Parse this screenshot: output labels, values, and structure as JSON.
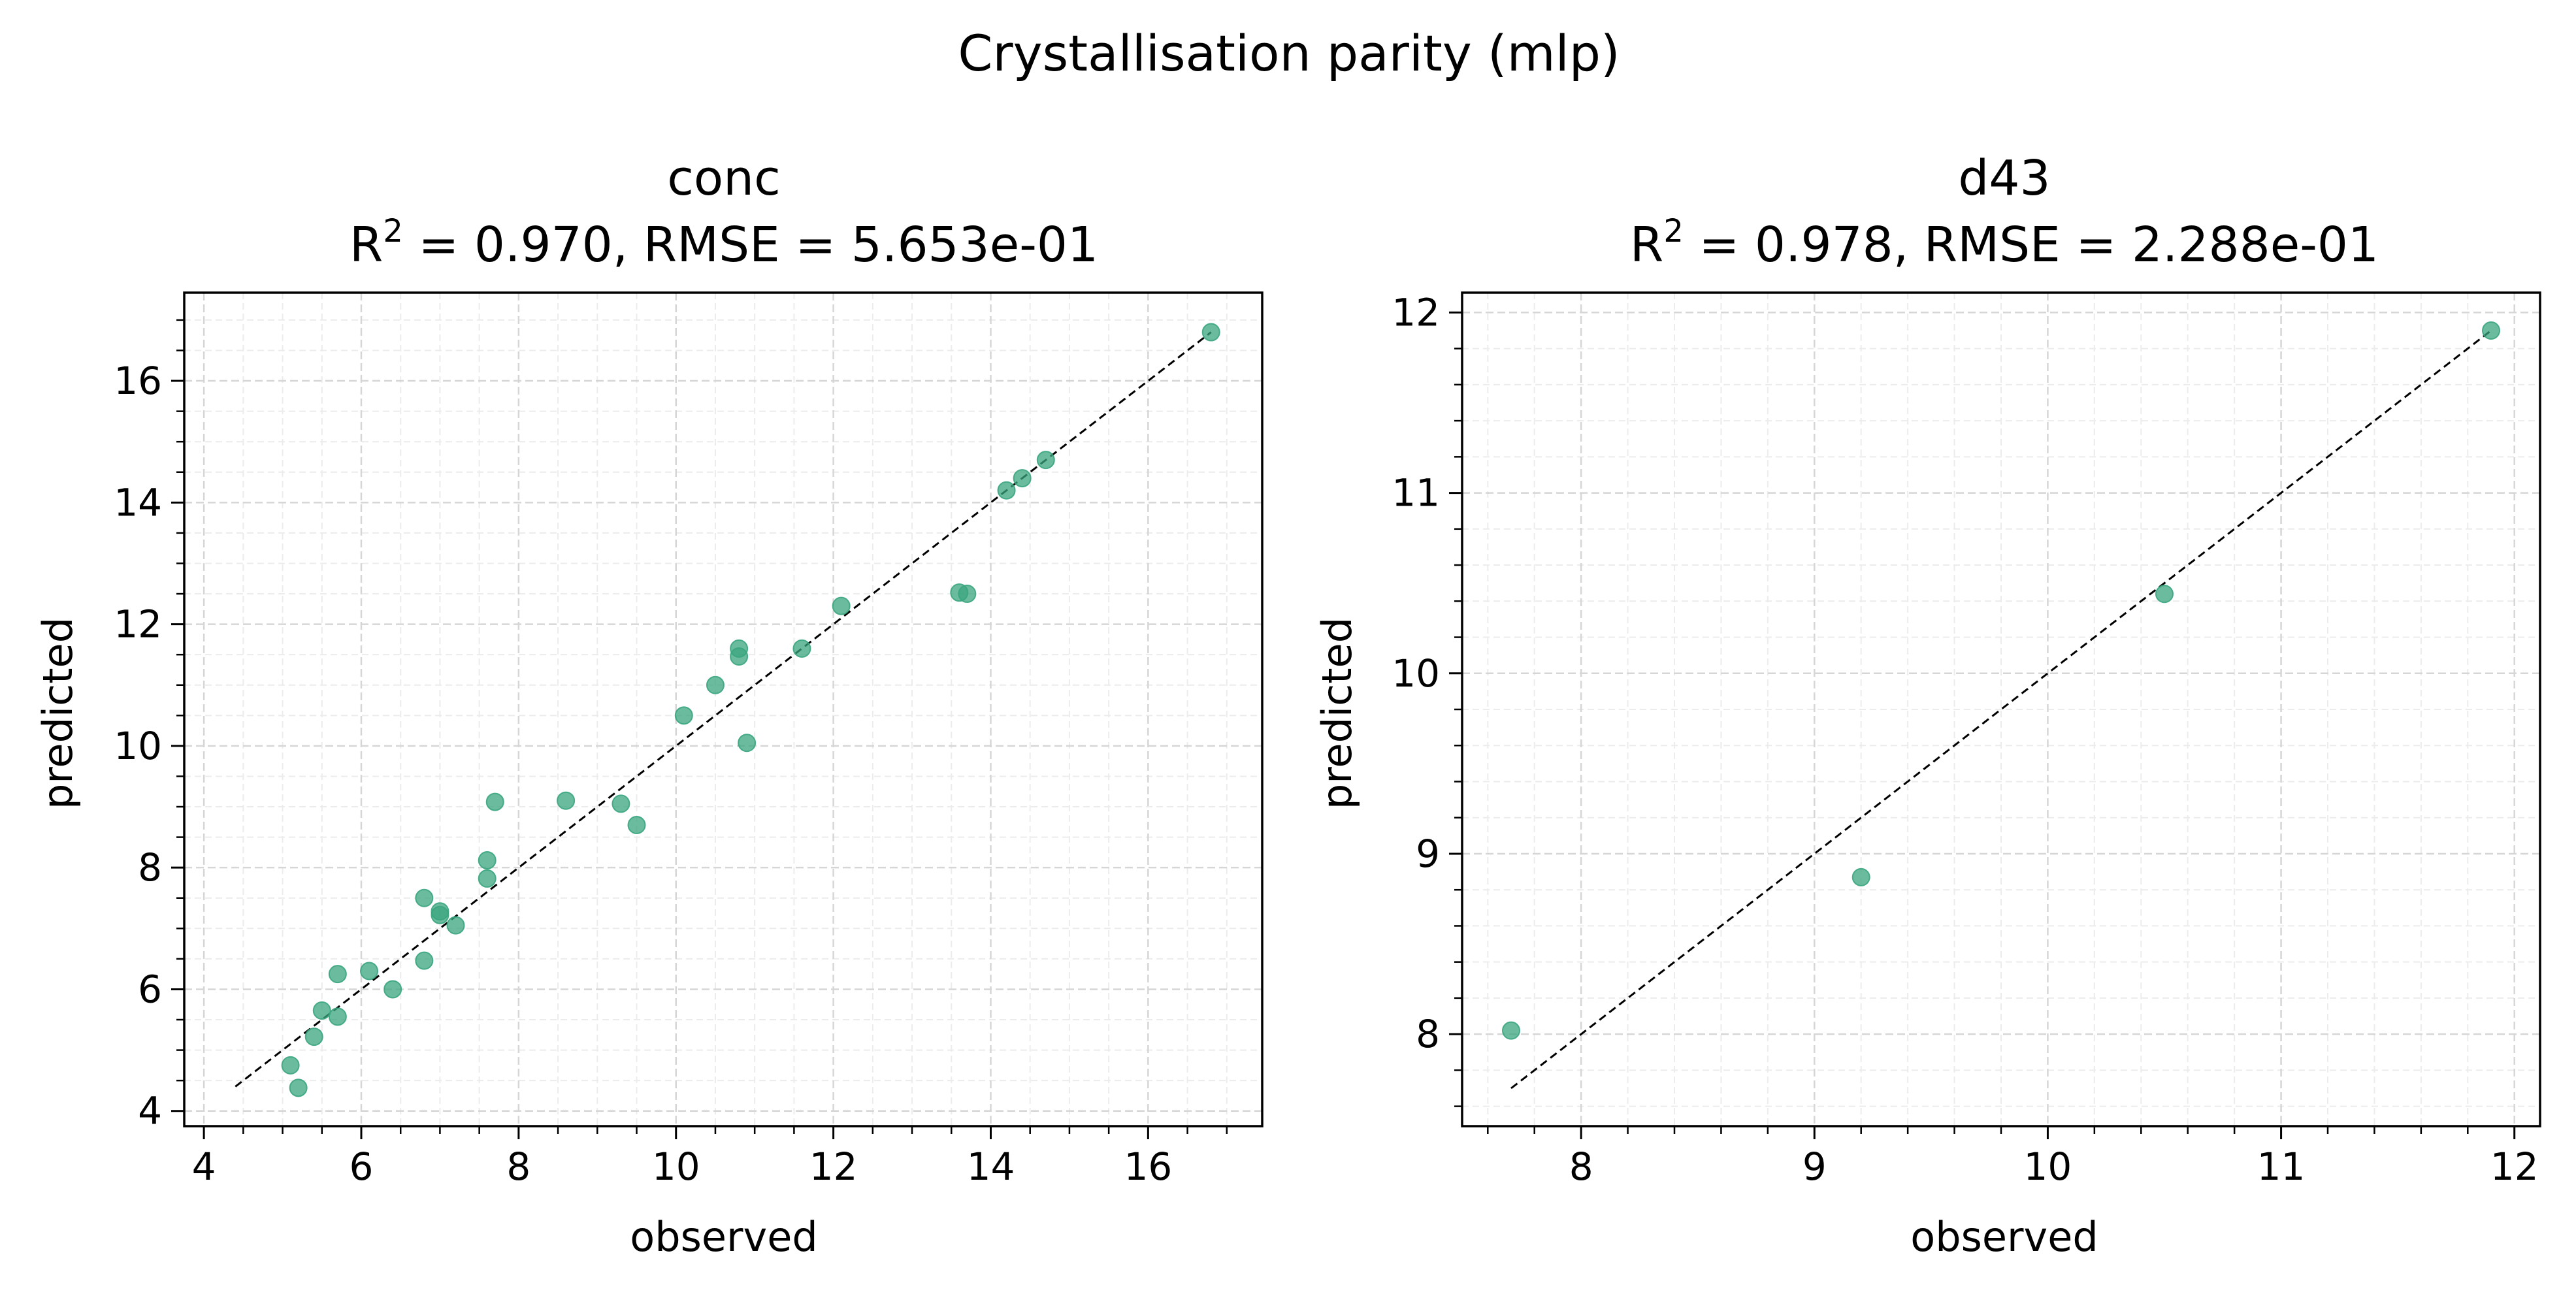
{
  "figure": {
    "suptitle": "Crystallisation parity (mlp)",
    "point_color": "#3aa57e",
    "point_opacity": 0.75,
    "grid": true,
    "grid_style": "dashed"
  },
  "chart_data": [
    {
      "type": "scatter",
      "title": "conc",
      "subtitle": {
        "r2_label": "R",
        "r2_exp": "2",
        "rest": " = 0.970, RMSE = 5.653e-01"
      },
      "xlabel": "observed",
      "ylabel": "predicted",
      "xlim": [
        3.75,
        17.45
      ],
      "ylim": [
        3.75,
        17.45
      ],
      "xticks": [
        4,
        6,
        8,
        10,
        12,
        14,
        16
      ],
      "yticks": [
        4,
        6,
        8,
        10,
        12,
        14,
        16
      ],
      "minor_step": 0.5,
      "identity_line": [
        4.4,
        16.8
      ],
      "points": [
        {
          "x": 5.1,
          "y": 4.75
        },
        {
          "x": 5.2,
          "y": 4.38
        },
        {
          "x": 5.4,
          "y": 5.22
        },
        {
          "x": 5.5,
          "y": 5.65
        },
        {
          "x": 5.7,
          "y": 5.55
        },
        {
          "x": 5.7,
          "y": 6.25
        },
        {
          "x": 6.1,
          "y": 6.3
        },
        {
          "x": 6.4,
          "y": 6.0
        },
        {
          "x": 6.8,
          "y": 7.5
        },
        {
          "x": 6.8,
          "y": 6.47
        },
        {
          "x": 7.0,
          "y": 7.28
        },
        {
          "x": 7.0,
          "y": 7.22
        },
        {
          "x": 7.2,
          "y": 7.05
        },
        {
          "x": 7.6,
          "y": 7.82
        },
        {
          "x": 7.6,
          "y": 8.12
        },
        {
          "x": 7.7,
          "y": 9.08
        },
        {
          "x": 8.6,
          "y": 9.1
        },
        {
          "x": 9.3,
          "y": 9.05
        },
        {
          "x": 9.5,
          "y": 8.7
        },
        {
          "x": 10.1,
          "y": 10.5
        },
        {
          "x": 10.5,
          "y": 11.0
        },
        {
          "x": 10.8,
          "y": 11.47
        },
        {
          "x": 10.8,
          "y": 11.6
        },
        {
          "x": 10.9,
          "y": 10.05
        },
        {
          "x": 11.6,
          "y": 11.6
        },
        {
          "x": 12.1,
          "y": 12.3
        },
        {
          "x": 13.6,
          "y": 12.52
        },
        {
          "x": 13.7,
          "y": 12.5
        },
        {
          "x": 14.2,
          "y": 14.2
        },
        {
          "x": 14.4,
          "y": 14.4
        },
        {
          "x": 14.7,
          "y": 14.7
        },
        {
          "x": 16.8,
          "y": 16.8
        }
      ]
    },
    {
      "type": "scatter",
      "title": "d43",
      "subtitle": {
        "r2_label": "R",
        "r2_exp": "2",
        "rest": " = 0.978, RMSE = 2.288e-01"
      },
      "xlabel": "observed",
      "ylabel": "predicted",
      "xlim": [
        7.49,
        12.11
      ],
      "ylim": [
        7.49,
        12.11
      ],
      "xticks": [
        8,
        9,
        10,
        11,
        12
      ],
      "yticks": [
        8,
        9,
        10,
        11,
        12
      ],
      "minor_step": 0.2,
      "identity_line": [
        7.7,
        11.9
      ],
      "points": [
        {
          "x": 7.7,
          "y": 8.02
        },
        {
          "x": 9.2,
          "y": 8.87
        },
        {
          "x": 10.5,
          "y": 10.44
        },
        {
          "x": 11.9,
          "y": 11.9
        }
      ]
    }
  ]
}
